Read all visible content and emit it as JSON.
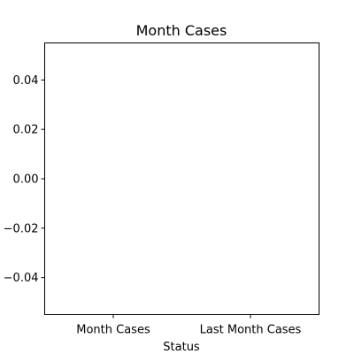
{
  "chart_data": {
    "type": "bar",
    "title": "Month Cases",
    "xlabel": "Status",
    "ylabel": "",
    "categories": [
      "Month Cases",
      "Last Month Cases"
    ],
    "values": [
      0,
      0
    ],
    "ylim": [
      -0.055,
      0.055
    ],
    "yticks": [
      0.04,
      0.02,
      0.0,
      -0.02,
      -0.04
    ],
    "ytick_labels": [
      "0.04",
      "0.02",
      "0.00",
      "−0.02",
      "−0.04"
    ],
    "grid": false,
    "legend": "none",
    "colors": {
      "bar": "#1f77b4",
      "axis": "#000000",
      "background": "#ffffff"
    }
  }
}
